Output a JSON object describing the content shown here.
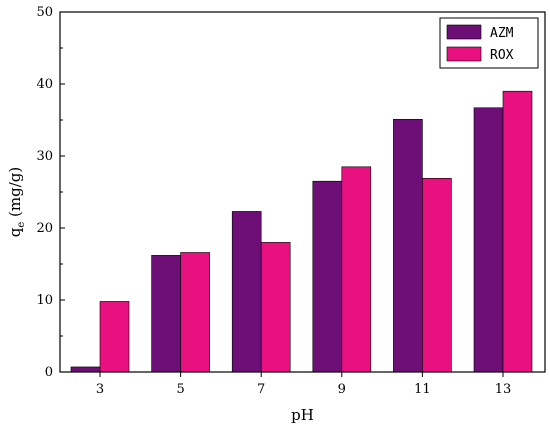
{
  "chart_data": {
    "type": "bar",
    "categories": [
      "3",
      "5",
      "7",
      "9",
      "11",
      "13"
    ],
    "series": [
      {
        "name": "AZM",
        "color": "#6e0f78",
        "values": [
          0.7,
          16.2,
          22.3,
          26.5,
          35.1,
          36.7
        ]
      },
      {
        "name": "ROX",
        "color": "#e8117f",
        "values": [
          9.8,
          16.6,
          18.0,
          28.5,
          26.9,
          39.0
        ]
      }
    ],
    "xlabel": "pH",
    "ylabel_main": "q",
    "ylabel_sub": "e",
    "ylabel_rest": " (mg/g)",
    "ylim": [
      0,
      50
    ],
    "yticks": [
      "0",
      "10",
      "20",
      "30",
      "40",
      "50"
    ],
    "legend_position": "top-right",
    "grid": false
  }
}
